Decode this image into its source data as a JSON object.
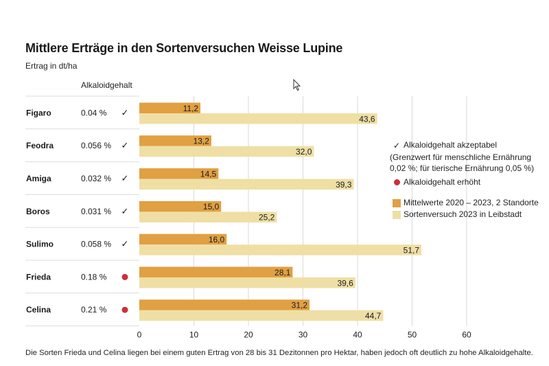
{
  "title": "Mittlere Erträge in den Sortenversuchen Weisse Lupine",
  "subtitle": "Ertrag in dt/ha",
  "alkaloid_header": "Alkaloidgehalt",
  "footnote": "Die Sorten Frieda und Celina liegen bei einem guten Ertrag von 28 bis 31 Dezitonnen pro Hektar, haben jedoch oft deutlich zu hohe Alkaloidgehalte.",
  "colors": {
    "series1": "#e0a043",
    "series2": "#efdfa5",
    "dot": "#c9303e",
    "grid": "#d9d9d9"
  },
  "legend": {
    "check_symbol": "✓",
    "check_label": "Alkaloidgehalt akzeptabel",
    "check_note": "(Grenzwert für menschliche Ernährung 0,02 %; für tierische Ernährung 0,05 %)",
    "dot_label": "Alkaloidgehalt erhöht",
    "series1_label": "Mittelwerte 2020 – 2023, 2 Standorte",
    "series2_label": "Sortenversuch 2023 in Leibstadt"
  },
  "chart_data": {
    "type": "bar",
    "orientation": "horizontal",
    "categories": [
      "Figaro",
      "Feodra",
      "Amiga",
      "Boros",
      "Sulimo",
      "Frieda",
      "Celina"
    ],
    "alkaloid": [
      "0.04 %",
      "0.056 %",
      "0.032 %",
      "0.031 %",
      "0.058 %",
      "0.18 %",
      "0.21 %"
    ],
    "alkaloid_status": [
      "acceptable",
      "acceptable",
      "acceptable",
      "acceptable",
      "acceptable",
      "elevated",
      "elevated"
    ],
    "series": [
      {
        "name": "Mittelwerte 2020 – 2023, 2 Standorte",
        "values": [
          11.2,
          13.2,
          14.5,
          15.0,
          16.0,
          28.1,
          31.2
        ],
        "labels": [
          "11,2",
          "13,2",
          "14,5",
          "15,0",
          "16,0",
          "28,1",
          "31,2"
        ]
      },
      {
        "name": "Sortenversuch 2023 in Leibstadt",
        "values": [
          43.6,
          32.0,
          39.3,
          25.2,
          51.7,
          39.6,
          44.7
        ],
        "labels": [
          "43,6",
          "32,0",
          "39,3",
          "25,2",
          "51,7",
          "39,6",
          "44,7"
        ]
      }
    ],
    "xlim": [
      0,
      60
    ],
    "xticks": [
      0,
      10,
      20,
      30,
      40,
      50,
      60
    ],
    "ylabel": "Ertrag in dt/ha",
    "grid": true
  }
}
